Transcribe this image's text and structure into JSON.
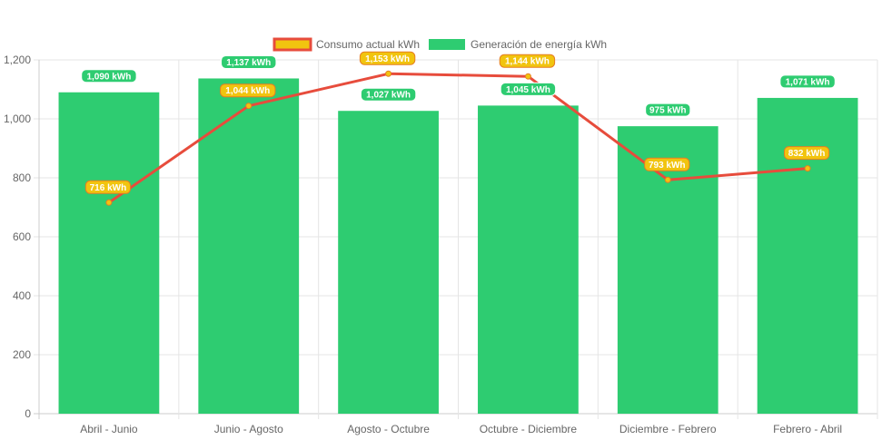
{
  "chart_data": {
    "type": "bar",
    "categories": [
      "Abril - Junio",
      "Junio - Agosto",
      "Agosto - Octubre",
      "Octubre - Diciembre",
      "Diciembre - Febrero",
      "Febrero - Abril"
    ],
    "ylim": [
      0,
      1200
    ],
    "yticks": [
      0,
      200,
      400,
      600,
      800,
      1000,
      1200
    ],
    "ytick_labels": [
      "0",
      "200",
      "400",
      "600",
      "800",
      "1,000",
      "1,200"
    ],
    "grid": true,
    "legend_position": "top",
    "series": [
      {
        "name": "Consumo actual kWh",
        "type": "line",
        "color": "#e74c3c",
        "fill": "#f1c40f",
        "values": [
          716,
          1044,
          1153,
          1144,
          793,
          832
        ],
        "labels": [
          "716 kWh",
          "1,044 kWh",
          "1,153 kWh",
          "1,144 kWh",
          "793 kWh",
          "832 kWh"
        ]
      },
      {
        "name": "Generación de energía kWh",
        "type": "bar",
        "color": "#2ecc71",
        "values": [
          1090,
          1137,
          1027,
          1045,
          975,
          1071
        ],
        "labels": [
          "1,090 kWh",
          "1,137 kWh",
          "1,027 kWh",
          "1,045 kWh",
          "975 kWh",
          "1,071 kWh"
        ]
      }
    ]
  }
}
